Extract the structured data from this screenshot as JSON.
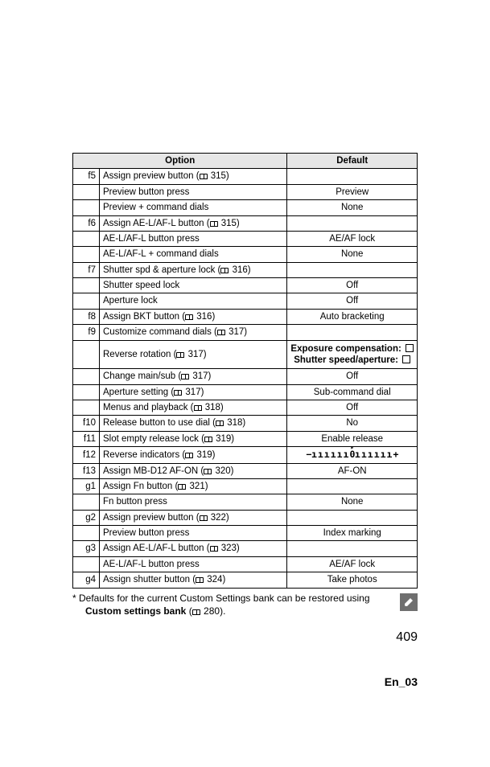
{
  "header": {
    "option": "Option",
    "default": "Default"
  },
  "rows": [
    {
      "type": "title",
      "code": "f5",
      "option": "Assign preview button",
      "page": "315"
    },
    {
      "type": "sub",
      "option": "Preview button press",
      "default": "Preview"
    },
    {
      "type": "sub",
      "option": "Preview + command dials",
      "default": "None"
    },
    {
      "type": "title",
      "code": "f6",
      "option": "Assign AE-L/AF-L button",
      "page": "315"
    },
    {
      "type": "sub",
      "option": "AE-L/AF-L button press",
      "default": "AE/AF lock"
    },
    {
      "type": "sub",
      "option": "AE-L/AF-L + command dials",
      "default": "None"
    },
    {
      "type": "title",
      "code": "f7",
      "option": "Shutter spd & aperture lock",
      "page": "316"
    },
    {
      "type": "sub",
      "option": "Shutter speed lock",
      "default": "Off"
    },
    {
      "type": "sub",
      "option": "Aperture lock",
      "default": "Off"
    },
    {
      "type": "row",
      "code": "f8",
      "option": "Assign BKT button",
      "page": "316",
      "default": "Auto bracketing"
    },
    {
      "type": "title",
      "code": "f9",
      "option": "Customize command dials",
      "page": "317"
    },
    {
      "type": "sub_exp",
      "option": "Reverse rotation",
      "page": "317",
      "exp_line1": "Exposure compensation:",
      "exp_line2": "Shutter speed/aperture:"
    },
    {
      "type": "subp",
      "option": "Change main/sub",
      "page": "317",
      "default": "Off"
    },
    {
      "type": "subp",
      "option": "Aperture setting",
      "page": "317",
      "default": "Sub-command dial"
    },
    {
      "type": "subp",
      "option": "Menus and playback",
      "page": "318",
      "default": "Off"
    },
    {
      "type": "row",
      "code": "f10",
      "option": "Release button to use dial",
      "page": "318",
      "default": "No"
    },
    {
      "type": "row",
      "code": "f11",
      "option": "Slot empty release lock",
      "page": "319",
      "default": "Enable release"
    },
    {
      "type": "row_ind",
      "code": "f12",
      "option": "Reverse indicators",
      "page": "319"
    },
    {
      "type": "row",
      "code": "f13",
      "option": "Assign MB-D12 AF-ON",
      "page": "320",
      "default": "AF-ON"
    },
    {
      "type": "title",
      "code": "g1",
      "option": "Assign Fn button",
      "page": "321"
    },
    {
      "type": "sub",
      "option": "Fn button press",
      "default": "None"
    },
    {
      "type": "title",
      "code": "g2",
      "option": "Assign preview button",
      "page": "322"
    },
    {
      "type": "sub",
      "option": "Preview button press",
      "default": "Index marking"
    },
    {
      "type": "title",
      "code": "g3",
      "option": "Assign AE-L/AF-L button",
      "page": "323"
    },
    {
      "type": "sub",
      "option": "AE-L/AF-L button press",
      "default": "AE/AF lock"
    },
    {
      "type": "row",
      "code": "g4",
      "option": "Assign shutter button",
      "page": "324",
      "default": "Take photos"
    }
  ],
  "note": {
    "line1_prefix": "* Defaults for the current Custom Settings bank can be restored using",
    "bold": "Custom settings bank",
    "page": "280",
    "suffix": "."
  },
  "page_number": "409",
  "footer_code": "En_03"
}
